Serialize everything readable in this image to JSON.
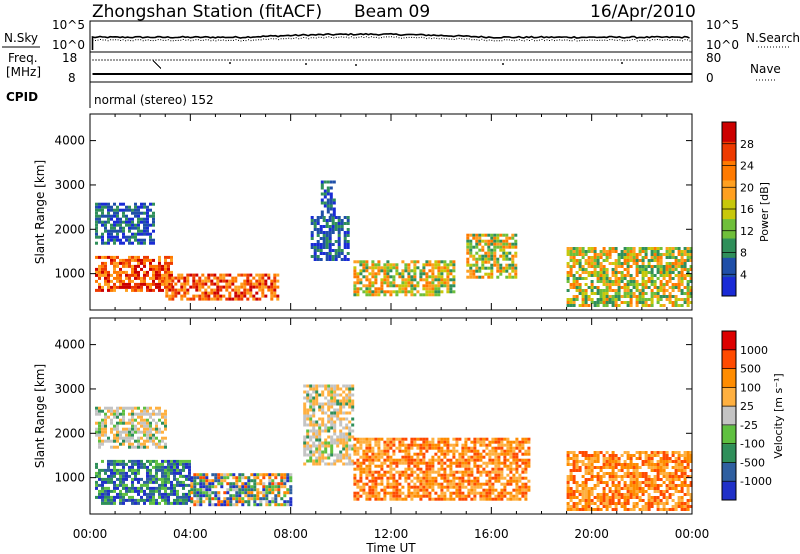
{
  "header": {
    "station": "Zhongshan Station (fitACF)",
    "beam": "Beam 09",
    "date": "16/Apr/2010"
  },
  "panels": {
    "nsky": {
      "label": "N.Sky",
      "left_ticks": [
        "10^5",
        "10^0"
      ],
      "right_ticks": [
        "10^5",
        "10^0"
      ],
      "right_label": "N.Search"
    },
    "freq": {
      "label_1": "Freq.",
      "label_2": "[MHz]",
      "left_ticks": [
        "18",
        "8"
      ],
      "right_ticks": [
        "80",
        "0"
      ],
      "right_label": "Nave"
    },
    "cpid": {
      "label": "CPID",
      "mode_text": "normal (stereo) 152"
    }
  },
  "colors": {
    "power": [
      "#1a2bd6",
      "#1f4fa8",
      "#2f8f5a",
      "#6fbf3a",
      "#c8c80a",
      "#ffa020",
      "#ff7a00",
      "#ee3a00",
      "#cc0000"
    ],
    "velocity": [
      "#2030c8",
      "#2f5fa0",
      "#2f8f5a",
      "#5fc040",
      "#c4c4c4",
      "#ffb040",
      "#ff8c00",
      "#ff4a00",
      "#dd0000"
    ]
  },
  "chart_data": [
    {
      "type": "heatmap",
      "title": "Power",
      "ylabel": "Slant Range [km]",
      "xlabel": "Time UT",
      "x_ticks": [
        "00:00",
        "04:00",
        "08:00",
        "12:00",
        "16:00",
        "20:00",
        "00:00"
      ],
      "y_ticks": [
        "1000",
        "2000",
        "3000",
        "4000"
      ],
      "ylim": [
        180,
        4600
      ],
      "colorbar": {
        "label": "Power [dB]",
        "ticks": [
          "4",
          "8",
          "12",
          "16",
          "20",
          "24",
          "28"
        ]
      },
      "echo_regions": [
        {
          "t": [
            0.2,
            3.2
          ],
          "r": [
            600,
            1400
          ],
          "level": "high"
        },
        {
          "t": [
            3.0,
            7.5
          ],
          "r": [
            400,
            1000
          ],
          "level": "high"
        },
        {
          "t": [
            0.2,
            2.5
          ],
          "r": [
            1700,
            2600
          ],
          "level": "low"
        },
        {
          "t": [
            8.8,
            10.3
          ],
          "r": [
            1300,
            2300
          ],
          "level": "low"
        },
        {
          "t": [
            9.2,
            9.7
          ],
          "r": [
            2300,
            3100
          ],
          "level": "low"
        },
        {
          "t": [
            10.5,
            14.5
          ],
          "r": [
            500,
            1300
          ],
          "level": "mid"
        },
        {
          "t": [
            15.0,
            17.0
          ],
          "r": [
            900,
            1900
          ],
          "level": "mid"
        },
        {
          "t": [
            19.0,
            24.0
          ],
          "r": [
            300,
            1600
          ],
          "level": "mid"
        }
      ]
    },
    {
      "type": "heatmap",
      "title": "Velocity",
      "ylabel": "Slant Range [km]",
      "xlabel": "Time UT",
      "x_ticks": [
        "00:00",
        "04:00",
        "08:00",
        "12:00",
        "16:00",
        "20:00",
        "00:00"
      ],
      "y_ticks": [
        "1000",
        "2000",
        "3000",
        "4000"
      ],
      "ylim": [
        180,
        4600
      ],
      "colorbar": {
        "label": "Velocity [m s⁻¹]",
        "ticks": [
          "1000",
          "500",
          "100",
          "25",
          "-25",
          "-100",
          "-500",
          "-1000"
        ]
      },
      "echo_regions": [
        {
          "t": [
            0.2,
            4.0
          ],
          "r": [
            400,
            1400
          ],
          "level": "toward"
        },
        {
          "t": [
            0.2,
            3.0
          ],
          "r": [
            1700,
            2600
          ],
          "level": "ground"
        },
        {
          "t": [
            4.0,
            8.0
          ],
          "r": [
            400,
            1100
          ],
          "level": "mixed"
        },
        {
          "t": [
            8.5,
            10.5
          ],
          "r": [
            1300,
            3100
          ],
          "level": "ground"
        },
        {
          "t": [
            10.5,
            17.5
          ],
          "r": [
            500,
            1900
          ],
          "level": "away"
        },
        {
          "t": [
            19.0,
            24.0
          ],
          "r": [
            300,
            1600
          ],
          "level": "away"
        }
      ]
    }
  ]
}
